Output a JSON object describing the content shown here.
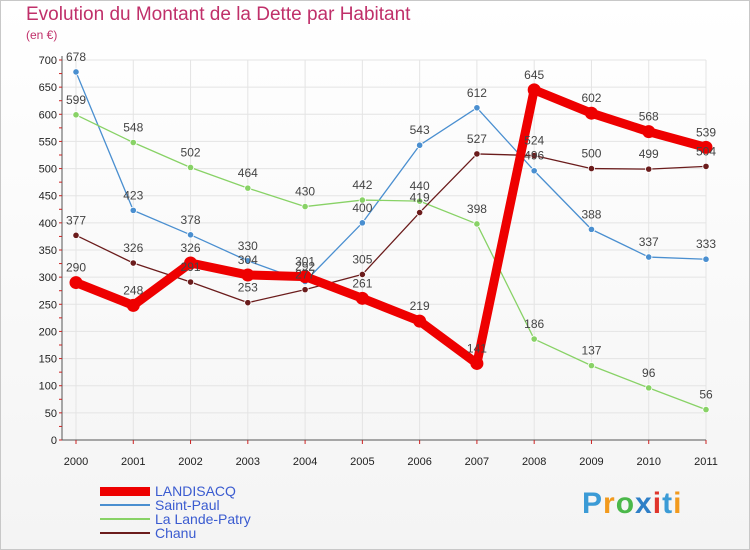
{
  "chart_data": {
    "type": "line",
    "title": "Evolution du Montant de la Dette par Habitant",
    "subtitle": "(en €)",
    "x": [
      "2000",
      "2001",
      "2002",
      "2003",
      "2004",
      "2005",
      "2006",
      "2007",
      "2008",
      "2009",
      "2010",
      "2011"
    ],
    "ylim": [
      0,
      700
    ],
    "yticks": [
      0,
      50,
      100,
      150,
      200,
      250,
      300,
      350,
      400,
      450,
      500,
      550,
      600,
      650,
      700
    ],
    "grid": true,
    "legend_position": "bottom-left",
    "series": [
      {
        "name": "LANDISACQ",
        "color": "#ee0000",
        "values": [
          290,
          248,
          326,
          304,
          301,
          261,
          219,
          141,
          645,
          602,
          568,
          539
        ]
      },
      {
        "name": "Saint-Paul",
        "color": "#4a8fd0",
        "values": [
          678,
          423,
          378,
          330,
          292,
          400,
          543,
          612,
          496,
          388,
          337,
          333
        ]
      },
      {
        "name": "La Lande-Patry",
        "color": "#88d266",
        "values": [
          599,
          548,
          502,
          464,
          430,
          442,
          440,
          398,
          186,
          137,
          96,
          56
        ]
      },
      {
        "name": "Chanu",
        "color": "#6b1c1c",
        "values": [
          377,
          326,
          291,
          253,
          277,
          305,
          419,
          527,
          524,
          500,
          499,
          504
        ]
      }
    ]
  },
  "logo": {
    "text": "Proxiti",
    "colors": [
      "#3b9bd6",
      "#f29a1d",
      "#4bb84a",
      "#2e7fc7",
      "#e0352b",
      "#3b9bd6",
      "#f29a1d"
    ]
  }
}
